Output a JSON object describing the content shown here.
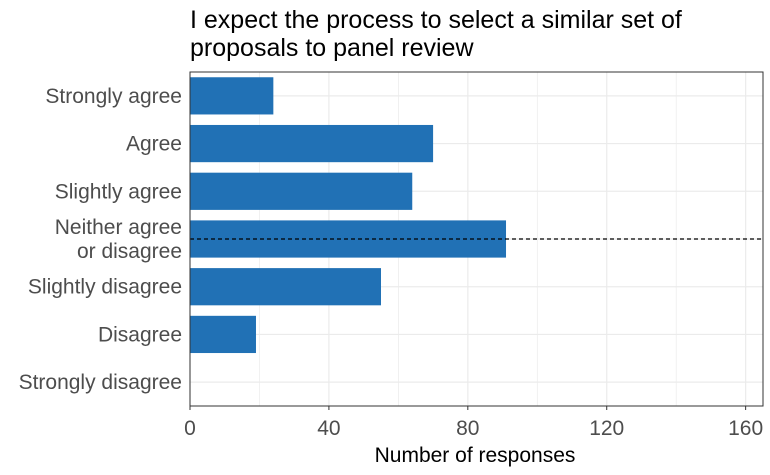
{
  "chart_data": {
    "type": "bar",
    "orientation": "horizontal",
    "title_lines": [
      "I expect the process to select a similar set of",
      "proposals to panel review"
    ],
    "categories": [
      [
        "Strongly agree"
      ],
      [
        "Agree"
      ],
      [
        "Slightly agree"
      ],
      [
        "Neither agree",
        "or disagree"
      ],
      [
        "Slightly disagree"
      ],
      [
        "Disagree"
      ],
      [
        "Strongly disagree"
      ]
    ],
    "values": [
      24,
      70,
      64,
      91,
      55,
      19,
      0
    ],
    "xlabel": "Number of responses",
    "ylabel": "",
    "xlim": [
      0,
      165
    ],
    "xticks": [
      0,
      40,
      80,
      120,
      160
    ],
    "grid": true,
    "reference_line": {
      "style": "dashed",
      "at_category_index": 3
    },
    "colors": {
      "bar": "#2171b5",
      "grid": "#ebebeb",
      "frame": "#333333",
      "reference": "#000000"
    }
  }
}
